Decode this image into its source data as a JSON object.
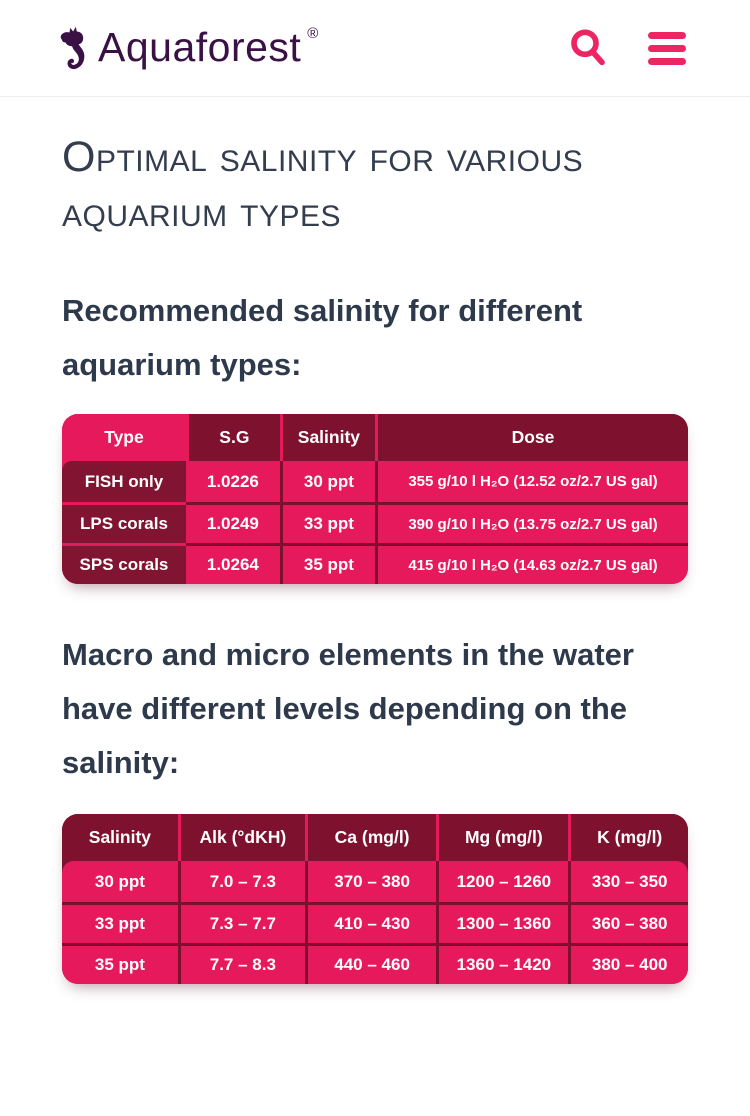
{
  "header": {
    "brand": "Aquaforest",
    "registered": "®",
    "search_icon": "search-icon",
    "menu_icon": "hamburger-menu-icon",
    "logo_icon": "seahorse-icon"
  },
  "colors": {
    "pink": "#E6195D",
    "maroon": "#7E122E",
    "cellDark": "#811531",
    "border": "#7C102E",
    "logo": "#3A1144",
    "icon": "#ED2563",
    "text": "#2E3A4C",
    "title": "#333D4E"
  },
  "page": {
    "title": "Optimal salinity for various aquarium types",
    "intro1": "Recommended salinity for different aquarium types:",
    "intro2": "Macro and micro elements in the water have different levels depending on the salinity:"
  },
  "table1": {
    "columns": [
      "Type",
      "S.G",
      "Salinity",
      "Dose"
    ],
    "rows": [
      [
        "FISH only",
        "1.0226",
        "30 ppt",
        "355 g/10 l H₂O (12.52 oz/2.7 US gal)"
      ],
      [
        "LPS corals",
        "1.0249",
        "33 ppt",
        "390 g/10 l H₂O (13.75 oz/2.7 US gal)"
      ],
      [
        "SPS corals",
        "1.0264",
        "35 ppt",
        "415 g/10 l H₂O (14.63 oz/2.7 US gal)"
      ]
    ]
  },
  "table2": {
    "columns": [
      "Salinity",
      "Alk (°dKH)",
      "Ca (mg/l)",
      "Mg (mg/l)",
      "K (mg/l)"
    ],
    "rows": [
      [
        "30 ppt",
        "7.0 – 7.3",
        "370 – 380",
        "1200 – 1260",
        "330 – 350"
      ],
      [
        "33 ppt",
        "7.3 – 7.7",
        "410 – 430",
        "1300 – 1360",
        "360 – 380"
      ],
      [
        "35 ppt",
        "7.7 – 8.3",
        "440 – 460",
        "1360 – 1420",
        "380 – 400"
      ]
    ]
  }
}
